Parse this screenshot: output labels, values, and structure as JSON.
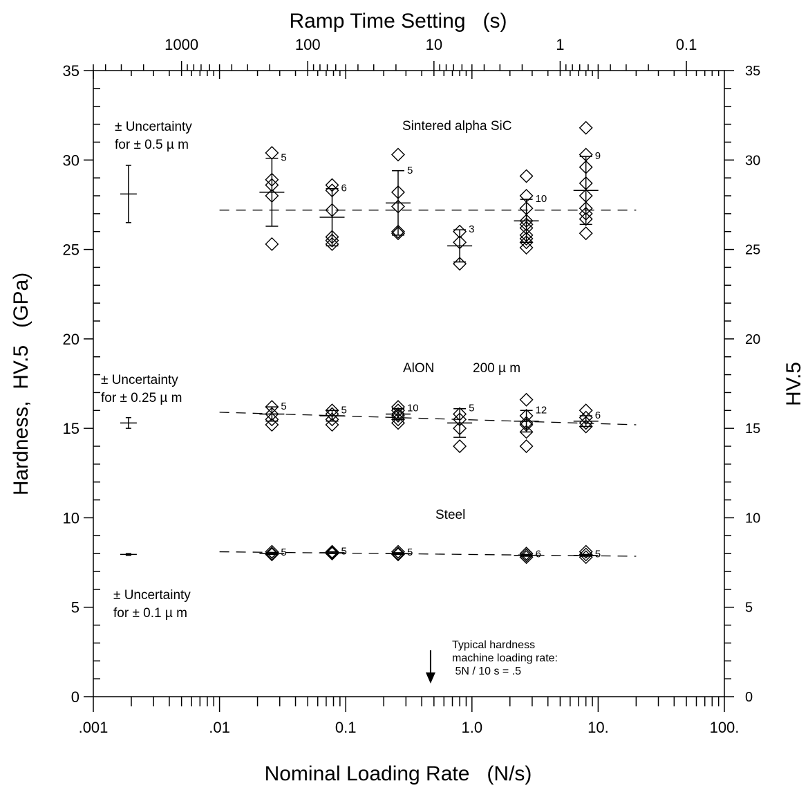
{
  "chart_data": {
    "type": "scatter",
    "xlabel": "Nominal Loading Rate   (N/s)",
    "top_xlabel": "Ramp Time Setting   (s)",
    "ylabel": "Hardness,  HV.5   (GPa)",
    "right_ylabel": "HV.5",
    "x_scale": "log",
    "xlim": [
      0.001,
      100
    ],
    "ylim": [
      0,
      35
    ],
    "x_tick_labels": [
      {
        "value": 0.001,
        "label": ".001"
      },
      {
        "value": 0.01,
        "label": ".01"
      },
      {
        "value": 0.1,
        "label": "0.1"
      },
      {
        "value": 1,
        "label": "1.0"
      },
      {
        "value": 10,
        "label": "10."
      },
      {
        "value": 100,
        "label": "100."
      }
    ],
    "top_tick_labels": [
      {
        "value": 0.005,
        "label": "1000"
      },
      {
        "value": 0.05,
        "label": "100"
      },
      {
        "value": 0.5,
        "label": "10"
      },
      {
        "value": 5,
        "label": "1"
      },
      {
        "value": 50,
        "label": "0.1"
      }
    ],
    "y_tick_labels": [
      "0",
      "5",
      "10",
      "15",
      "20",
      "25",
      "30",
      "35"
    ],
    "right_y_tick_labels": [
      "0",
      "5",
      "10",
      "15",
      "20",
      "25",
      "30",
      "35"
    ],
    "series": [
      {
        "name": "Sintered alpha SiC",
        "label": "Sintered alpha SiC",
        "reference_line": {
          "x": [
            0.01,
            20
          ],
          "y": [
            27.2,
            27.2
          ]
        },
        "groups": [
          {
            "x": 0.026,
            "points": [
              30.4,
              28.9,
              28.6,
              28.0,
              25.3
            ],
            "mean": 28.2,
            "sd": 1.9,
            "n": "5"
          },
          {
            "x": 0.078,
            "points": [
              28.6,
              28.3,
              27.2,
              25.7,
              25.5,
              25.3
            ],
            "mean": 26.8,
            "sd": 1.6,
            "n": "6"
          },
          {
            "x": 0.26,
            "points": [
              30.3,
              28.2,
              27.4,
              26.0,
              25.9
            ],
            "mean": 27.6,
            "sd": 1.8,
            "n": "5"
          },
          {
            "x": 0.8,
            "points": [
              26.0,
              25.4,
              24.2
            ],
            "mean": 25.2,
            "sd": 0.9,
            "n": "3"
          },
          {
            "x": 2.7,
            "points": [
              29.1,
              28.0,
              27.3,
              26.6,
              26.4,
              26.2,
              25.8,
              25.6,
              25.4,
              25.1
            ],
            "mean": 26.6,
            "sd": 1.2,
            "n": "10"
          },
          {
            "x": 8.0,
            "points": [
              31.8,
              30.3,
              29.6,
              28.7,
              28.0,
              27.3,
              27.0,
              26.7,
              25.9
            ],
            "mean": 28.3,
            "sd": 1.9,
            "n": "9"
          }
        ]
      },
      {
        "name": "AlON  200 µm",
        "label": "AlON",
        "label2": "200 µ m",
        "reference_line": {
          "x": [
            0.01,
            20
          ],
          "y": [
            15.9,
            15.2
          ]
        },
        "groups": [
          {
            "x": 0.026,
            "points": [
              16.2,
              15.8,
              15.5,
              15.2
            ],
            "mean": 15.8,
            "sd": 0.4,
            "n": "5"
          },
          {
            "x": 0.078,
            "points": [
              16.0,
              15.8,
              15.5,
              15.2
            ],
            "mean": 15.7,
            "sd": 0.3,
            "n": "5"
          },
          {
            "x": 0.26,
            "points": [
              16.2,
              16.0,
              15.8,
              15.7,
              15.5,
              15.3
            ],
            "mean": 15.8,
            "sd": 0.3,
            "n": "10"
          },
          {
            "x": 0.8,
            "points": [
              15.8,
              15.5,
              15.0,
              14.0
            ],
            "mean": 15.3,
            "sd": 0.8,
            "n": "5"
          },
          {
            "x": 2.7,
            "points": [
              16.6,
              15.7,
              15.3,
              15.2,
              14.8,
              14.0
            ],
            "mean": 15.4,
            "sd": 0.6,
            "n": "12"
          },
          {
            "x": 8.0,
            "points": [
              16.0,
              15.6,
              15.3,
              15.1
            ],
            "mean": 15.4,
            "sd": 0.3,
            "n": "6"
          }
        ]
      },
      {
        "name": "Steel",
        "label": "Steel",
        "reference_line": {
          "x": [
            0.01,
            20
          ],
          "y": [
            8.1,
            7.85
          ]
        },
        "groups": [
          {
            "x": 0.026,
            "points": [
              8.1,
              8.0,
              7.95
            ],
            "mean": 8.0,
            "sd": 0.05,
            "n": "5"
          },
          {
            "x": 0.078,
            "points": [
              8.1,
              8.05,
              8.0
            ],
            "mean": 8.05,
            "sd": 0.05,
            "n": "5"
          },
          {
            "x": 0.26,
            "points": [
              8.1,
              8.0,
              7.95
            ],
            "mean": 8.0,
            "sd": 0.05,
            "n": "5"
          },
          {
            "x": 2.7,
            "points": [
              8.0,
              7.9,
              7.8
            ],
            "mean": 7.9,
            "sd": 0.05,
            "n": "6"
          },
          {
            "x": 8.0,
            "points": [
              8.1,
              7.95,
              7.8
            ],
            "mean": 7.9,
            "sd": 0.05,
            "n": "5"
          }
        ]
      }
    ],
    "uncertainty_bars": [
      {
        "label_line1": "± Uncertainty",
        "label_line2": "for ± 0.5 µ m",
        "x": 0.0019,
        "y": 28.1,
        "half": 1.6
      },
      {
        "label_line1": "± Uncertainty",
        "label_line2": "for ± 0.25 µ m",
        "x": 0.0019,
        "y": 15.3,
        "half": 0.3
      },
      {
        "label_line1": "± Uncertainty",
        "label_line2": "for ± 0.1 µ m",
        "x": 0.0019,
        "y": 7.95,
        "half": 0.05
      }
    ],
    "annotation": {
      "lines": [
        "Typical hardness",
        "machine loading rate:",
        " 5N / 10 s = .5"
      ],
      "arrow_x": 0.47
    },
    "grid": false,
    "legend": "none"
  }
}
